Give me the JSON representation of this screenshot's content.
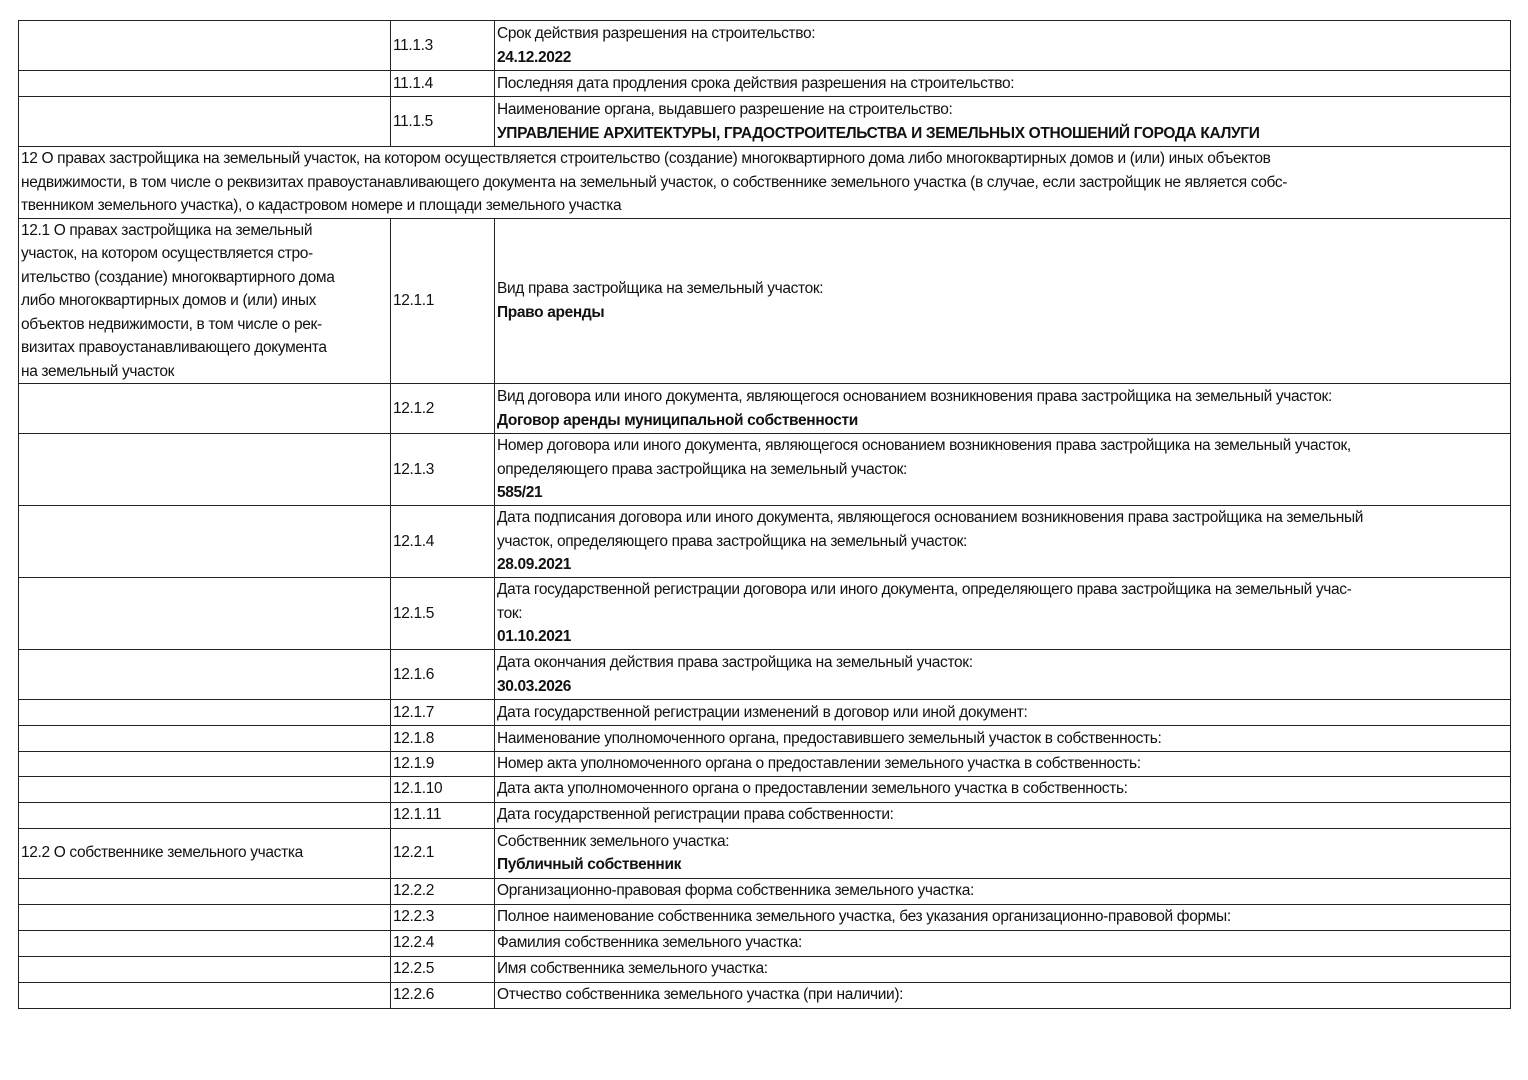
{
  "rows": [
    {
      "code": "11.1.3",
      "label": "Срок действия разрешения на строительство:",
      "value": "24.12.2022"
    },
    {
      "code": "11.1.4",
      "label": "Последняя дата продления срока действия разрешения на строительство:",
      "value": ""
    },
    {
      "code": "11.1.5",
      "label": "Наименование органа, выдавшего разрешение на строительство:",
      "value": "УПРАВЛЕНИЕ АРХИТЕКТУРЫ, ГРАДОСТРОИТЕЛЬСТВА И ЗЕМЕЛЬНЫХ ОТНОШЕНИЙ ГОРОДА КАЛУГИ"
    },
    {
      "section": "12 О правах застройщика на земельный участок, на котором осуществляется строительство (создание) многоквартирного дома либо многоквартирных домов и (или) иных объектов\nнедвижимости, в том числе о реквизитах правоустанавливающего документа на земельный участок, о собственнике земельного участка (в случае, если застройщик не является собс-\nтвенником земельного участка), о кадастровом номере и площади земельного участка"
    },
    {
      "group": "12.1 О правах застройщика на земельный\nучасток, на котором осуществляется стро-\nительство (создание) многоквартирного дома\nлибо многоквартирных домов и (или) иных\nобъектов недвижимости, в том числе о рек-\nвизитах правоустанавливающего документа\nна земельный участок",
      "code": "12.1.1",
      "label": "Вид права застройщика на земельный участок:",
      "value": "Право аренды"
    },
    {
      "code": "12.1.2",
      "label": "Вид договора или иного документа, являющегося основанием возникновения права застройщика на земельный участок:",
      "value": "Договор аренды муниципальной собственности"
    },
    {
      "code": "12.1.3",
      "label": "Номер договора или иного документа, являющегося основанием возникновения права застройщика на земельный участок,\nопределяющего права застройщика на земельный участок:",
      "value": "585/21"
    },
    {
      "code": "12.1.4",
      "label": "Дата подписания договора или иного документа, являющегося основанием возникновения права застройщика на земельный\nучасток, определяющего права застройщика на земельный участок:",
      "value": "28.09.2021"
    },
    {
      "code": "12.1.5",
      "label": "Дата государственной регистрации договора или иного документа, определяющего права застройщика на земельный учас-\nток:",
      "value": "01.10.2021"
    },
    {
      "code": "12.1.6",
      "label": "Дата окончания действия права застройщика на земельный участок:",
      "value": "30.03.2026"
    },
    {
      "code": "12.1.7",
      "label": "Дата государственной регистрации изменений в договор или иной документ:",
      "value": ""
    },
    {
      "code": "12.1.8",
      "label": "Наименование уполномоченного органа, предоставившего земельный участок в собственность:",
      "value": ""
    },
    {
      "code": "12.1.9",
      "label": "Номер акта уполномоченного органа о предоставлении земельного участка в собственность:",
      "value": ""
    },
    {
      "code": "12.1.10",
      "label": "Дата акта уполномоченного органа о предоставлении земельного участка в собственность:",
      "value": ""
    },
    {
      "code": "12.1.11",
      "label": "Дата государственной регистрации права собственности:",
      "value": ""
    },
    {
      "group": "12.2 О собственнике земельного участка",
      "code": "12.2.1",
      "label": "Собственник земельного участка:",
      "value": "Публичный собственник"
    },
    {
      "code": "12.2.2",
      "label": "Организационно-правовая форма собственника земельного участка:",
      "value": ""
    },
    {
      "code": "12.2.3",
      "label": "Полное наименование собственника земельного участка, без указания организационно-правовой формы:",
      "value": ""
    },
    {
      "code": "12.2.4",
      "label": "Фамилия собственника земельного участка:",
      "value": ""
    },
    {
      "code": "12.2.5",
      "label": "Имя собственника земельного участка:",
      "value": ""
    },
    {
      "code": "12.2.6",
      "label": "Отчество собственника земельного участка (при наличии):",
      "value": ""
    }
  ]
}
